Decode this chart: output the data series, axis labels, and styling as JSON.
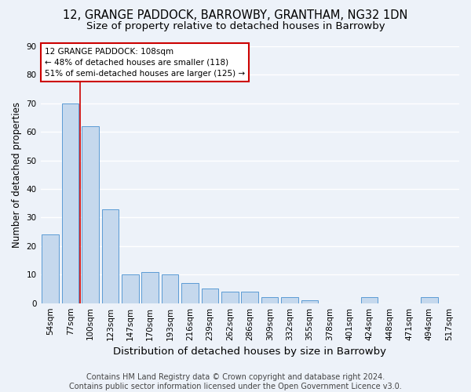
{
  "title": "12, GRANGE PADDOCK, BARROWBY, GRANTHAM, NG32 1DN",
  "subtitle": "Size of property relative to detached houses in Barrowby",
  "xlabel": "Distribution of detached houses by size in Barrowby",
  "ylabel": "Number of detached properties",
  "categories": [
    "54sqm",
    "77sqm",
    "100sqm",
    "123sqm",
    "147sqm",
    "170sqm",
    "193sqm",
    "216sqm",
    "239sqm",
    "262sqm",
    "286sqm",
    "309sqm",
    "332sqm",
    "355sqm",
    "378sqm",
    "401sqm",
    "424sqm",
    "448sqm",
    "471sqm",
    "494sqm",
    "517sqm"
  ],
  "values": [
    24,
    70,
    62,
    33,
    10,
    11,
    10,
    7,
    5,
    4,
    4,
    2,
    2,
    1,
    0,
    0,
    2,
    0,
    0,
    2,
    0
  ],
  "bar_color": "#c5d8ed",
  "bar_edge_color": "#5b9bd5",
  "ylim": [
    0,
    90
  ],
  "yticks": [
    0,
    10,
    20,
    30,
    40,
    50,
    60,
    70,
    80,
    90
  ],
  "red_line_x": 1.5,
  "annotation_text": "12 GRANGE PADDOCK: 108sqm\n← 48% of detached houses are smaller (118)\n51% of semi-detached houses are larger (125) →",
  "annotation_box_color": "#ffffff",
  "annotation_box_edge": "#cc0000",
  "footer": "Contains HM Land Registry data © Crown copyright and database right 2024.\nContains public sector information licensed under the Open Government Licence v3.0.",
  "bg_color": "#edf2f9",
  "plot_bg_color": "#edf2f9",
  "grid_color": "#ffffff",
  "title_fontsize": 10.5,
  "subtitle_fontsize": 9.5,
  "xlabel_fontsize": 9.5,
  "ylabel_fontsize": 8.5,
  "footer_fontsize": 7,
  "tick_fontsize": 7.5,
  "annotation_fontsize": 7.5
}
